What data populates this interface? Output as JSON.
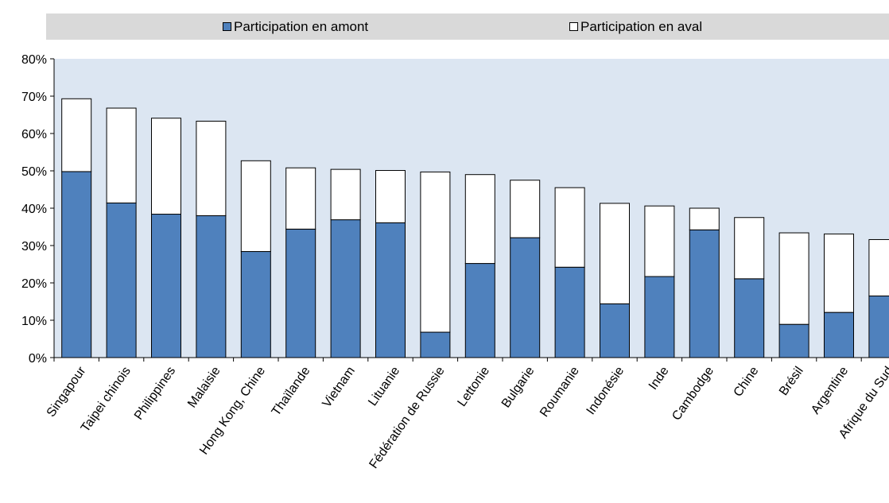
{
  "chart_data": {
    "type": "bar",
    "stacked": true,
    "categories": [
      "Singapour",
      "Taipei chinois",
      "Philippines",
      "Malaisie",
      "Hong Kong, Chine",
      "Thaïlande",
      "Vietnam",
      "Lituanie",
      "Fédération de Russie",
      "Lettonie",
      "Bulgarie",
      "Roumanie",
      "Indonésie",
      "Inde",
      "Cambodge",
      "Chine",
      "Brésil",
      "Argentine",
      "Afrique du Sud"
    ],
    "series": [
      {
        "name": "Participation en amont",
        "color": "#4f81bd",
        "values": [
          49.8,
          41.4,
          38.4,
          38.0,
          28.4,
          34.4,
          36.9,
          36.1,
          6.8,
          25.2,
          32.1,
          24.2,
          14.4,
          21.7,
          34.2,
          21.1,
          8.9,
          12.1,
          16.5
        ]
      },
      {
        "name": "Participation en aval",
        "color": "#ffffff",
        "values": [
          19.5,
          25.4,
          25.7,
          25.3,
          24.3,
          16.4,
          13.5,
          14.0,
          42.9,
          23.8,
          15.4,
          21.3,
          26.9,
          18.9,
          5.8,
          16.4,
          24.5,
          21.0,
          15.1
        ]
      }
    ],
    "ylim": [
      0,
      80
    ],
    "yticks": [
      "0%",
      "10%",
      "20%",
      "30%",
      "40%",
      "50%",
      "60%",
      "70%",
      "80%"
    ],
    "grid": false,
    "legend": "top",
    "plot_background": "#dce6f2",
    "legend_background": "#d9d9d9"
  }
}
